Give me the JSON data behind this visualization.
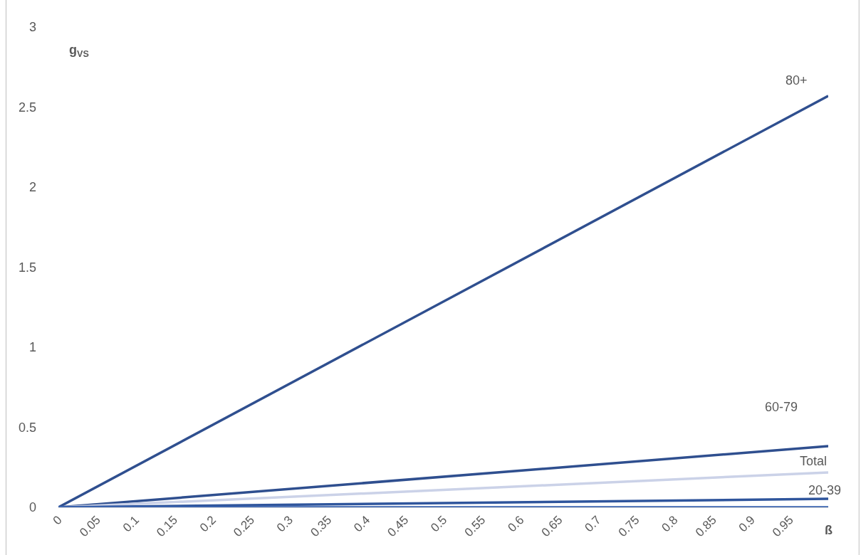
{
  "chart_data": {
    "type": "line",
    "xlabel": "ß",
    "ylabel": "g$_{VS}$",
    "x": [
      0,
      1
    ],
    "series": [
      {
        "name": "80+",
        "color": "#2f4f8f",
        "values": [
          0,
          2.57
        ]
      },
      {
        "name": "60-79",
        "color": "#2f4f8f",
        "values": [
          0,
          0.382
        ]
      },
      {
        "name": "Total",
        "color": "#cbd2e8",
        "values": [
          0,
          0.218
        ]
      },
      {
        "name": "20-39",
        "color": "#2f559c",
        "values": [
          0,
          0.053
        ]
      },
      {
        "color": "#3b64b0",
        "values": [
          0,
          0
        ]
      }
    ],
    "xlim": [
      0,
      1
    ],
    "xticks": [
      0,
      0.05,
      0.1,
      0.15,
      0.2,
      0.25,
      0.3,
      0.35,
      0.4,
      0.45,
      0.5,
      0.55,
      0.6,
      0.65,
      0.7,
      0.75,
      0.8,
      0.85,
      0.9,
      0.95
    ],
    "ylim": [
      0,
      3
    ],
    "yticks": [
      0,
      0.5,
      1,
      1.5,
      2,
      2.5,
      3
    ],
    "legend": false,
    "marker": "none",
    "line_style": "solid"
  }
}
